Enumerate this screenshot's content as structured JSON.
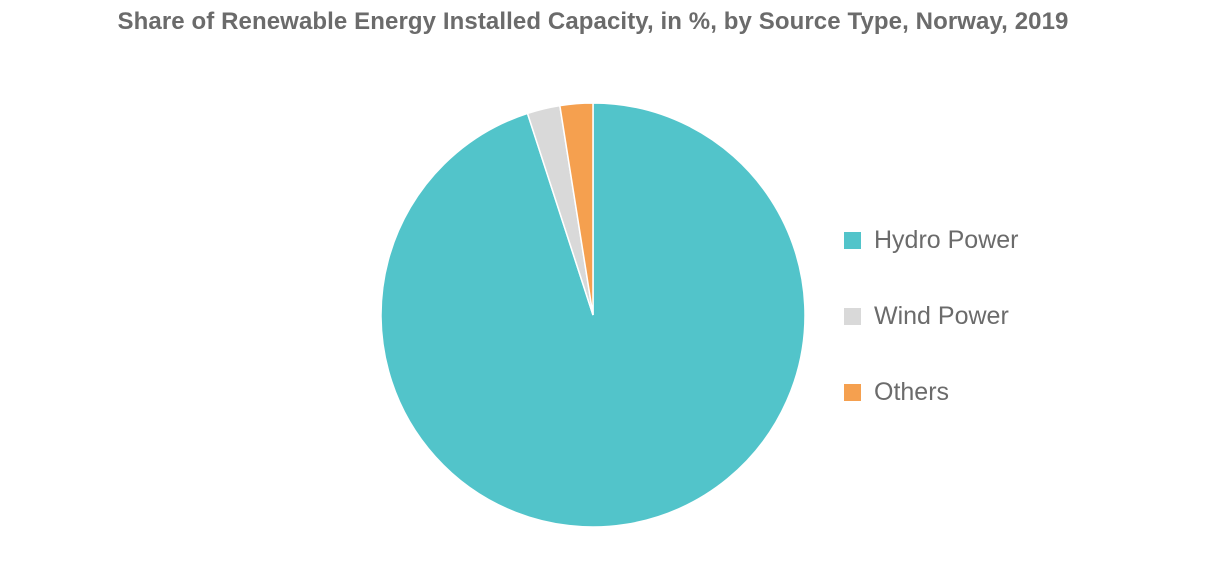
{
  "chart_data": {
    "type": "pie",
    "title": "Share of Renewable Energy Installed Capacity, in %, by Source Type, Norway, 2019",
    "slices": [
      {
        "label": "Hydro Power",
        "value": 95.0,
        "color": "#52c4ca"
      },
      {
        "label": "Wind Power",
        "value": 2.5,
        "color": "#d9d9d9"
      },
      {
        "label": "Others",
        "value": 2.5,
        "color": "#f5a04f"
      }
    ],
    "start_angle_deg": 0,
    "direction": "clockwise",
    "legend_position": "right"
  }
}
